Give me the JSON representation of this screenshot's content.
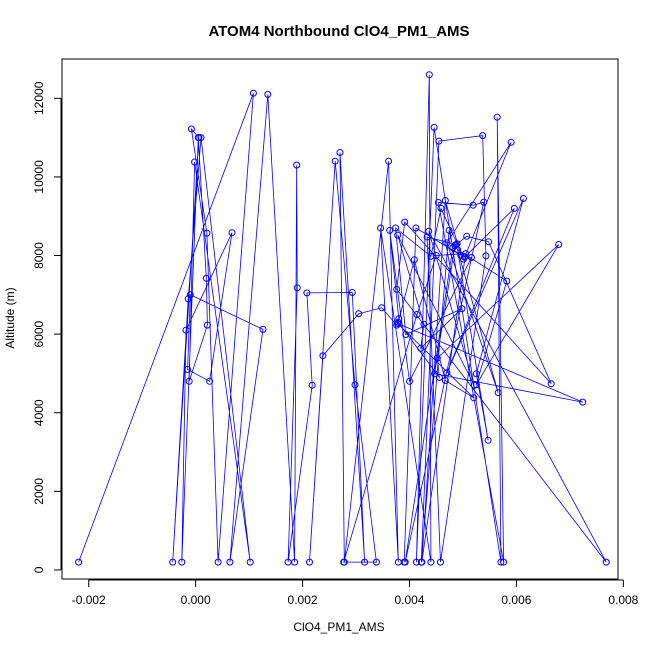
{
  "chart_data": {
    "type": "line",
    "title": "ATOM4 Northbound ClO4_PM1_AMS",
    "xlabel": "ClO4_PM1_AMS",
    "ylabel": "Altitude (m)",
    "xlim": [
      -0.0025,
      0.0079
    ],
    "ylim": [
      -230,
      13000
    ],
    "xticks": [
      {
        "value": -0.002,
        "label": "-0.002"
      },
      {
        "value": 0.0,
        "label": "0.000"
      },
      {
        "value": 0.002,
        "label": "0.002"
      },
      {
        "value": 0.004,
        "label": "0.004"
      },
      {
        "value": 0.006,
        "label": "0.006"
      },
      {
        "value": 0.008,
        "label": "0.008"
      }
    ],
    "yticks": [
      {
        "value": 0,
        "label": "0"
      },
      {
        "value": 2000,
        "label": "2000"
      },
      {
        "value": 4000,
        "label": "4000"
      },
      {
        "value": 6000,
        "label": "6000"
      },
      {
        "value": 8000,
        "label": "8000"
      },
      {
        "value": 10000,
        "label": "10000"
      },
      {
        "value": 12000,
        "label": "12000"
      }
    ],
    "grid": false,
    "marker": "open-circle",
    "series": [
      {
        "color": "#0000ff",
        "points": [
          [
            -0.00219,
            200
          ],
          [
            0.00108,
            12130
          ],
          [
            0.00042,
            200
          ],
          [
            0.00021,
            8570
          ],
          [
            -8e-05,
            11220
          ],
          [
            6e-05,
            11000
          ],
          [
            -0.00043,
            200
          ],
          [
            -0.00014,
            6900
          ],
          [
            0.0001,
            11000
          ],
          [
            0.00102,
            200
          ],
          [
            -2e-05,
            10380
          ],
          [
            -0.00012,
            4800
          ],
          [
            0.00022,
            6230
          ],
          [
            0.0002,
            7420
          ],
          [
            5e-05,
            11000
          ],
          [
            -0.00026,
            200
          ],
          [
            -0.00018,
            6100
          ],
          [
            0.00068,
            8580
          ],
          [
            0.00026,
            4800
          ],
          [
            -0.00015,
            5100
          ],
          [
            -0.0001,
            7000
          ],
          [
            0.00126,
            6120
          ],
          [
            0.00064,
            200
          ],
          [
            0.00135,
            12100
          ],
          [
            0.00185,
            200
          ],
          [
            0.00189,
            10300
          ],
          [
            0.0019,
            7180
          ],
          [
            0.00173,
            200
          ],
          [
            0.00218,
            4700
          ],
          [
            0.00208,
            7050
          ],
          [
            0.00293,
            7060
          ],
          [
            0.00316,
            200
          ],
          [
            0.0027,
            10620
          ],
          [
            0.00278,
            200
          ],
          [
            0.00361,
            10400
          ],
          [
            0.00379,
            200
          ],
          [
            0.00346,
            8700
          ],
          [
            0.0044,
            200
          ],
          [
            0.00437,
            12600
          ],
          [
            0.00413,
            200
          ],
          [
            0.00446,
            11260
          ],
          [
            0.00571,
            200
          ],
          [
            0.00564,
            11520
          ],
          [
            0.00576,
            200
          ],
          [
            0.00454,
            9350
          ],
          [
            0.00519,
            9280
          ],
          [
            0.00539,
            9360
          ],
          [
            0.00392,
            200
          ],
          [
            0.00481,
            8200
          ],
          [
            0.00474,
            8640
          ],
          [
            0.00422,
            200
          ],
          [
            0.00455,
            10910
          ],
          [
            0.00537,
            11050
          ],
          [
            0.00543,
            7990
          ],
          [
            0.00458,
            200
          ],
          [
            0.00433,
            8470
          ],
          [
            0.00487,
            8280
          ],
          [
            0.00566,
            4510
          ],
          [
            0.0047,
            8320
          ],
          [
            0.0059,
            10880
          ],
          [
            0.00503,
            7960
          ],
          [
            0.00596,
            9200
          ],
          [
            0.0047,
            5020
          ],
          [
            0.00613,
            9450
          ],
          [
            0.00525,
            4990
          ],
          [
            0.00547,
            3300
          ],
          [
            0.0049,
            8150
          ],
          [
            0.00582,
            7350
          ],
          [
            0.00525,
            4710
          ],
          [
            0.00679,
            8280
          ],
          [
            0.00452,
            5390
          ],
          [
            0.00456,
            4900
          ],
          [
            0.00379,
            6300
          ],
          [
            0.00409,
            7890
          ],
          [
            0.00467,
            4820
          ],
          [
            0.0052,
            4380
          ],
          [
            0.00378,
            6270
          ],
          [
            0.00724,
            4270
          ],
          [
            0.00447,
            4990
          ],
          [
            0.00485,
            8250
          ],
          [
            0.00507,
            8490
          ],
          [
            0.00548,
            8350
          ],
          [
            0.00665,
            4740
          ],
          [
            0.00391,
            8850
          ],
          [
            0.00376,
            7140
          ],
          [
            0.00768,
            200
          ],
          [
            0.00436,
            8620
          ],
          [
            0.00521,
            4700
          ],
          [
            0.00378,
            8520
          ],
          [
            0.00427,
            6250
          ],
          [
            0.00421,
            5640
          ],
          [
            0.00498,
            6650
          ],
          [
            0.00393,
            5990
          ],
          [
            0.00374,
            8700
          ],
          [
            0.0044,
            7980
          ],
          [
            0.00459,
            9200
          ],
          [
            0.00489,
            8300
          ],
          [
            0.00501,
            7910
          ],
          [
            0.00516,
            7950
          ],
          [
            0.004,
            4800
          ],
          [
            0.00363,
            8640
          ],
          [
            0.0038,
            6390
          ],
          [
            0.00376,
            6230
          ],
          [
            0.00348,
            6670
          ],
          [
            0.00305,
            6520
          ],
          [
            0.00238,
            5450
          ],
          [
            0.00213,
            200
          ],
          [
            0.00261,
            10400
          ],
          [
            0.00298,
            4710
          ],
          [
            0.00338,
            200
          ],
          [
            0.00277,
            200
          ],
          [
            0.00414,
            6500
          ],
          [
            0.0045,
            8000
          ],
          [
            0.00505,
            8050
          ],
          [
            0.00423,
            200
          ],
          [
            0.00467,
            9400
          ],
          [
            0.00496,
            8010
          ],
          [
            0.00412,
            8700
          ],
          [
            0.0039,
            200
          ]
        ]
      }
    ]
  }
}
